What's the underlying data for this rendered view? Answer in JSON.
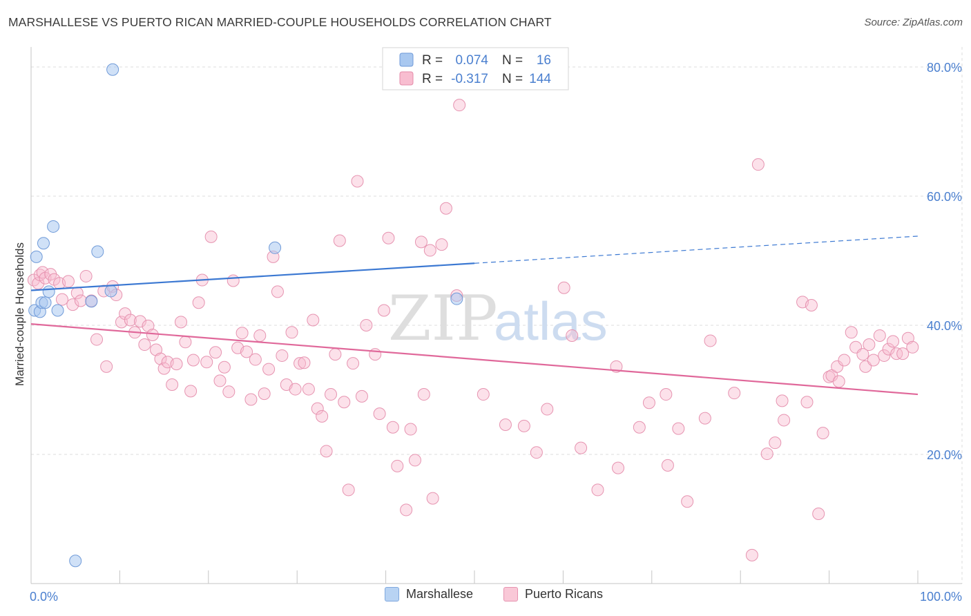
{
  "title": "MARSHALLESE VS PUERTO RICAN MARRIED-COUPLE HOUSEHOLDS CORRELATION CHART",
  "source": "Source: ZipAtlas.com",
  "watermark": {
    "zip": "ZIP",
    "atlas": "atlas"
  },
  "legend_top": [
    {
      "r_label": "R =",
      "r_value": "0.074",
      "n_label": "N =",
      "n_value": "16",
      "color": "#a9c8f0",
      "stroke": "#6f9ad8"
    },
    {
      "r_label": "R =",
      "r_value": "-0.317",
      "n_label": "N =",
      "n_value": "144",
      "color": "#f8bdd0",
      "stroke": "#e48aa8"
    }
  ],
  "legend_bottom": [
    {
      "label": "Marshallese",
      "color": "#b8d3f3",
      "stroke": "#7fa8de"
    },
    {
      "label": "Puerto Ricans",
      "color": "#f9c8d7",
      "stroke": "#e693b0"
    }
  ],
  "colors": {
    "blue_line": "#3b78d2",
    "pink_line": "#e0689a",
    "tick_text": "#4a7fcf",
    "grid": "#dcdcdc"
  },
  "chart_data": {
    "type": "scatter",
    "x_axis": {
      "min": 0,
      "max": 100,
      "unit": "%",
      "tick_labels": [
        "0.0%",
        "100.0%"
      ]
    },
    "y_axis": {
      "label": "Married-couple Households",
      "min": 0,
      "max": 80,
      "ticks": [
        20,
        40,
        60,
        80
      ],
      "tick_labels": [
        "20.0%",
        "40.0%",
        "60.0%",
        "80.0%"
      ]
    },
    "series": [
      {
        "name": "Marshallese",
        "r": 0.074,
        "n": 16,
        "trend": {
          "x0": 0,
          "y0": 45.4,
          "x1": 50,
          "y1": 49.6,
          "dash_x1": 100,
          "dash_y1": 53.8
        },
        "points": [
          [
            0.4,
            42.3
          ],
          [
            0.6,
            50.6
          ],
          [
            1.0,
            42.1
          ],
          [
            1.2,
            43.5
          ],
          [
            1.4,
            52.7
          ],
          [
            1.6,
            43.5
          ],
          [
            2.0,
            45.2
          ],
          [
            2.5,
            55.3
          ],
          [
            3.0,
            42.3
          ],
          [
            5.0,
            3.5
          ],
          [
            6.8,
            43.7
          ],
          [
            7.5,
            51.4
          ],
          [
            9.0,
            45.3
          ],
          [
            9.2,
            79.6
          ],
          [
            27.5,
            52.0
          ],
          [
            48.0,
            44.1
          ]
        ]
      },
      {
        "name": "Puerto Ricans",
        "r": -0.317,
        "n": 144,
        "trend": {
          "x0": 0,
          "y0": 40.2,
          "x1": 100,
          "y1": 29.3
        },
        "points": [
          [
            0.3,
            47.0
          ],
          [
            0.8,
            46.5
          ],
          [
            1.0,
            47.8
          ],
          [
            1.3,
            48.2
          ],
          [
            1.6,
            47.3
          ],
          [
            2.2,
            47.9
          ],
          [
            2.6,
            47.1
          ],
          [
            3.2,
            46.5
          ],
          [
            3.5,
            44.0
          ],
          [
            4.2,
            46.8
          ],
          [
            4.7,
            43.2
          ],
          [
            5.2,
            45.0
          ],
          [
            5.6,
            43.8
          ],
          [
            6.2,
            47.6
          ],
          [
            6.8,
            43.8
          ],
          [
            7.4,
            37.8
          ],
          [
            8.2,
            45.3
          ],
          [
            8.5,
            33.6
          ],
          [
            9.2,
            46.0
          ],
          [
            9.6,
            44.7
          ],
          [
            10.2,
            40.5
          ],
          [
            10.6,
            41.8
          ],
          [
            11.2,
            40.8
          ],
          [
            11.7,
            38.9
          ],
          [
            12.3,
            40.6
          ],
          [
            12.8,
            37.0
          ],
          [
            13.2,
            39.9
          ],
          [
            13.7,
            38.5
          ],
          [
            14.1,
            36.2
          ],
          [
            14.6,
            34.8
          ],
          [
            15.0,
            33.3
          ],
          [
            15.4,
            34.3
          ],
          [
            15.9,
            30.8
          ],
          [
            16.4,
            34.0
          ],
          [
            16.9,
            40.5
          ],
          [
            17.4,
            37.4
          ],
          [
            18.0,
            29.8
          ],
          [
            18.3,
            34.6
          ],
          [
            18.9,
            43.5
          ],
          [
            19.3,
            47.0
          ],
          [
            19.8,
            34.3
          ],
          [
            20.3,
            53.7
          ],
          [
            20.8,
            35.8
          ],
          [
            21.3,
            31.4
          ],
          [
            21.8,
            33.5
          ],
          [
            22.3,
            29.7
          ],
          [
            22.8,
            46.9
          ],
          [
            23.3,
            36.5
          ],
          [
            23.8,
            38.8
          ],
          [
            24.3,
            35.9
          ],
          [
            24.8,
            28.5
          ],
          [
            25.3,
            34.7
          ],
          [
            25.8,
            38.4
          ],
          [
            26.3,
            29.4
          ],
          [
            26.8,
            33.2
          ],
          [
            27.3,
            50.6
          ],
          [
            27.8,
            45.2
          ],
          [
            28.3,
            35.3
          ],
          [
            28.8,
            30.8
          ],
          [
            29.4,
            38.9
          ],
          [
            29.8,
            30.1
          ],
          [
            30.3,
            34.1
          ],
          [
            30.8,
            34.2
          ],
          [
            31.3,
            30.1
          ],
          [
            31.8,
            40.8
          ],
          [
            32.3,
            27.1
          ],
          [
            32.8,
            25.9
          ],
          [
            33.3,
            20.5
          ],
          [
            33.8,
            29.3
          ],
          [
            34.3,
            35.5
          ],
          [
            34.8,
            53.1
          ],
          [
            35.3,
            28.1
          ],
          [
            35.8,
            14.5
          ],
          [
            36.3,
            34.1
          ],
          [
            36.8,
            62.3
          ],
          [
            37.3,
            29.0
          ],
          [
            37.8,
            40.0
          ],
          [
            38.8,
            35.5
          ],
          [
            39.3,
            26.3
          ],
          [
            39.8,
            42.3
          ],
          [
            40.3,
            53.5
          ],
          [
            40.8,
            24.2
          ],
          [
            41.3,
            18.2
          ],
          [
            42.3,
            11.4
          ],
          [
            42.8,
            23.9
          ],
          [
            43.3,
            19.1
          ],
          [
            44.0,
            52.9
          ],
          [
            44.3,
            29.3
          ],
          [
            45.0,
            51.6
          ],
          [
            45.3,
            13.2
          ],
          [
            46.3,
            52.5
          ],
          [
            46.8,
            58.1
          ],
          [
            48.3,
            74.1
          ],
          [
            48.0,
            44.6
          ],
          [
            51.0,
            29.3
          ],
          [
            53.5,
            24.6
          ],
          [
            55.6,
            24.4
          ],
          [
            57.0,
            20.3
          ],
          [
            58.2,
            27.0
          ],
          [
            60.1,
            45.8
          ],
          [
            62.0,
            21.0
          ],
          [
            61.0,
            38.4
          ],
          [
            63.9,
            14.5
          ],
          [
            66.0,
            33.6
          ],
          [
            66.2,
            17.9
          ],
          [
            68.6,
            24.2
          ],
          [
            69.7,
            28.0
          ],
          [
            71.6,
            29.3
          ],
          [
            71.8,
            18.3
          ],
          [
            73.0,
            24.0
          ],
          [
            74.0,
            12.7
          ],
          [
            76.0,
            25.6
          ],
          [
            76.6,
            37.6
          ],
          [
            79.3,
            29.5
          ],
          [
            81.3,
            4.4
          ],
          [
            82.0,
            64.9
          ],
          [
            83.0,
            20.1
          ],
          [
            83.9,
            21.8
          ],
          [
            84.7,
            28.3
          ],
          [
            84.9,
            25.3
          ],
          [
            87.0,
            43.6
          ],
          [
            88.0,
            43.1
          ],
          [
            87.5,
            28.1
          ],
          [
            88.8,
            10.8
          ],
          [
            89.3,
            23.3
          ],
          [
            90.0,
            32.0
          ],
          [
            90.3,
            32.2
          ],
          [
            90.9,
            33.6
          ],
          [
            91.1,
            31.3
          ],
          [
            91.7,
            34.6
          ],
          [
            92.5,
            38.9
          ],
          [
            93.0,
            36.6
          ],
          [
            93.8,
            35.5
          ],
          [
            94.1,
            33.6
          ],
          [
            94.5,
            37.0
          ],
          [
            95.0,
            34.6
          ],
          [
            95.7,
            38.4
          ],
          [
            96.2,
            35.3
          ],
          [
            96.7,
            36.3
          ],
          [
            97.2,
            37.5
          ],
          [
            97.6,
            35.6
          ],
          [
            98.3,
            35.6
          ],
          [
            98.9,
            38.0
          ],
          [
            99.4,
            36.6
          ]
        ]
      }
    ]
  }
}
